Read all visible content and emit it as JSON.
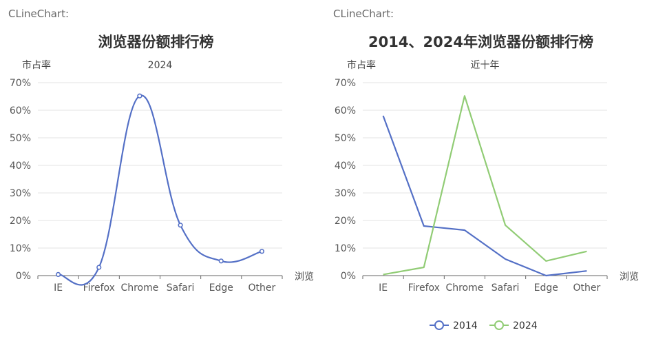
{
  "panels": [
    {
      "caption": "CLineChart:"
    },
    {
      "caption": "CLineChart:"
    }
  ],
  "chart_data": [
    {
      "type": "line",
      "smooth": true,
      "title": "浏览器份额排行榜",
      "subtitle": "2024",
      "ylabel": "市占率",
      "xlabel": "浏览",
      "categories": [
        "IE",
        "Firefox",
        "Chrome",
        "Safari",
        "Edge",
        "Other"
      ],
      "ylim": [
        0,
        70
      ],
      "yticks": [
        "0%",
        "10%",
        "20%",
        "30%",
        "40%",
        "50%",
        "60%",
        "70%"
      ],
      "grid": true,
      "series": [
        {
          "values": [
            0.4,
            3,
            65.2,
            18.3,
            5.3,
            8.8
          ],
          "color": "#5470c6",
          "markers": true
        }
      ]
    },
    {
      "type": "line",
      "smooth": false,
      "title": "2014、2024年浏览器份额排行榜",
      "subtitle": "近十年",
      "ylabel": "市占率",
      "xlabel": "浏览",
      "categories": [
        "IE",
        "Firefox",
        "Chrome",
        "Safari",
        "Edge",
        "Other"
      ],
      "ylim": [
        0,
        70
      ],
      "yticks": [
        "0%",
        "10%",
        "20%",
        "30%",
        "40%",
        "50%",
        "60%",
        "70%"
      ],
      "grid": true,
      "legend_position": "bottom",
      "series": [
        {
          "name": "2014",
          "values": [
            58,
            18,
            16.5,
            6,
            0,
            1.7
          ],
          "color": "#5470c6",
          "markers": false
        },
        {
          "name": "2024",
          "values": [
            0.4,
            3,
            65.2,
            18.3,
            5.3,
            8.8
          ],
          "color": "#91cc75",
          "markers": false
        }
      ]
    }
  ]
}
